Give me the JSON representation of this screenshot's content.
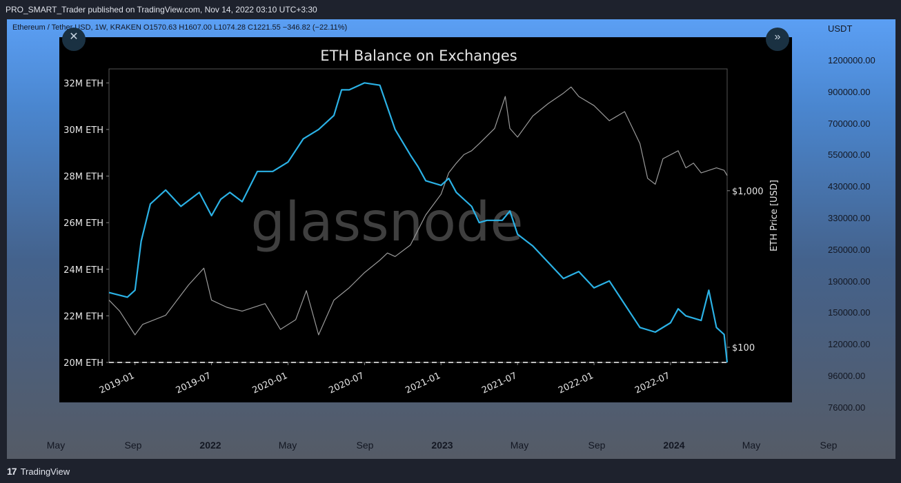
{
  "header": {
    "publish_line": "PRO_SMART_Trader published on TradingView.com, Nov 14, 2022 03:10 UTC+3:30"
  },
  "chart_panel": {
    "symbol_line": "Ethereum / Tether USD, 1W, KRAKEN  O1570.63  H1607.00  L1074.28  C1221.55  −346.82 (−22.11%)",
    "price_axis_unit": "USDT",
    "price_labels": [
      "1200000.00",
      "900000.00",
      "700000.00",
      "550000.00",
      "430000.00",
      "330000.00",
      "250000.00",
      "190000.00",
      "150000.00",
      "120000.00",
      "96000.00",
      "76000.00"
    ],
    "time_labels": [
      {
        "text": "May",
        "bold": false
      },
      {
        "text": "Sep",
        "bold": false
      },
      {
        "text": "2022",
        "bold": true
      },
      {
        "text": "May",
        "bold": false
      },
      {
        "text": "Sep",
        "bold": false
      },
      {
        "text": "2023",
        "bold": true
      },
      {
        "text": "May",
        "bold": false
      },
      {
        "text": "Sep",
        "bold": false
      },
      {
        "text": "2024",
        "bold": true
      },
      {
        "text": "May",
        "bold": false
      },
      {
        "text": "Sep",
        "bold": false
      }
    ],
    "close_icon": "x-icon",
    "expand_icon": "double-chevron-icon"
  },
  "footer": {
    "brand": "TradingView",
    "logo_text": "17"
  },
  "chart_data": {
    "type": "line",
    "title": "ETH Balance on Exchanges",
    "watermark": "glassnode",
    "x_tick_labels": [
      "2019-01",
      "2019-07",
      "2020-01",
      "2020-07",
      "2021-01",
      "2021-07",
      "2022-01",
      "2022-07"
    ],
    "y_left": {
      "ticks": [
        "32M ETH",
        "30M ETH",
        "28M ETH",
        "26M ETH",
        "24M ETH",
        "22M ETH",
        "20M ETH"
      ],
      "ylim": [
        20,
        32.6
      ]
    },
    "y_right": {
      "label": "ETH Price [USD]",
      "ticks": [
        "$1,000",
        "$100"
      ],
      "scale": "log",
      "ylim": [
        80,
        6000
      ]
    },
    "reference_line": {
      "value": 20.0,
      "style": "dashed"
    },
    "series": [
      {
        "color": "#2bb2e6",
        "x": [
          2018.83,
          2018.95,
          2019.0,
          2019.04,
          2019.1,
          2019.2,
          2019.3,
          2019.42,
          2019.5,
          2019.56,
          2019.62,
          2019.7,
          2019.8,
          2019.9,
          2020.0,
          2020.1,
          2020.2,
          2020.3,
          2020.35,
          2020.4,
          2020.5,
          2020.6,
          2020.7,
          2020.8,
          2020.85,
          2020.9,
          2021.0,
          2021.05,
          2021.1,
          2021.2,
          2021.25,
          2021.3,
          2021.4,
          2021.45,
          2021.5,
          2021.6,
          2021.7,
          2021.8,
          2021.9,
          2022.0,
          2022.1,
          2022.2,
          2022.3,
          2022.4,
          2022.5,
          2022.55,
          2022.6,
          2022.7,
          2022.75,
          2022.8,
          2022.85,
          2022.87
        ],
        "y": [
          23.0,
          22.8,
          23.1,
          25.2,
          26.8,
          27.4,
          26.7,
          27.3,
          26.3,
          27.0,
          27.3,
          26.9,
          28.2,
          28.2,
          28.6,
          29.6,
          30.0,
          30.6,
          31.7,
          31.7,
          32.0,
          31.9,
          30.0,
          28.9,
          28.4,
          27.8,
          27.6,
          27.9,
          27.3,
          26.7,
          26.0,
          26.1,
          26.1,
          26.5,
          25.5,
          25.0,
          24.3,
          23.6,
          23.9,
          23.2,
          23.5,
          22.5,
          21.5,
          21.3,
          21.7,
          22.3,
          22.0,
          21.8,
          23.1,
          21.5,
          21.2,
          20.0
        ]
      },
      {
        "color": "#9b9b9b",
        "x": [
          2018.83,
          2018.9,
          2019.0,
          2019.05,
          2019.2,
          2019.35,
          2019.45,
          2019.5,
          2019.6,
          2019.7,
          2019.85,
          2019.95,
          2020.05,
          2020.12,
          2020.2,
          2020.3,
          2020.4,
          2020.5,
          2020.6,
          2020.65,
          2020.7,
          2020.8,
          2020.9,
          2021.0,
          2021.05,
          2021.1,
          2021.15,
          2021.2,
          2021.25,
          2021.35,
          2021.42,
          2021.45,
          2021.5,
          2021.6,
          2021.7,
          2021.8,
          2021.85,
          2021.9,
          2022.0,
          2022.1,
          2022.2,
          2022.3,
          2022.35,
          2022.4,
          2022.45,
          2022.55,
          2022.6,
          2022.65,
          2022.7,
          2022.8,
          2022.85,
          2022.87
        ],
        "y": [
          200,
          170,
          120,
          140,
          160,
          250,
          320,
          200,
          180,
          170,
          190,
          130,
          150,
          230,
          120,
          200,
          240,
          300,
          360,
          400,
          380,
          450,
          700,
          950,
          1300,
          1500,
          1700,
          1800,
          2000,
          2500,
          4000,
          2500,
          2200,
          3000,
          3600,
          4200,
          4600,
          4000,
          3500,
          2800,
          3200,
          2000,
          1200,
          1100,
          1600,
          1800,
          1400,
          1500,
          1300,
          1400,
          1350,
          1250
        ]
      }
    ]
  }
}
